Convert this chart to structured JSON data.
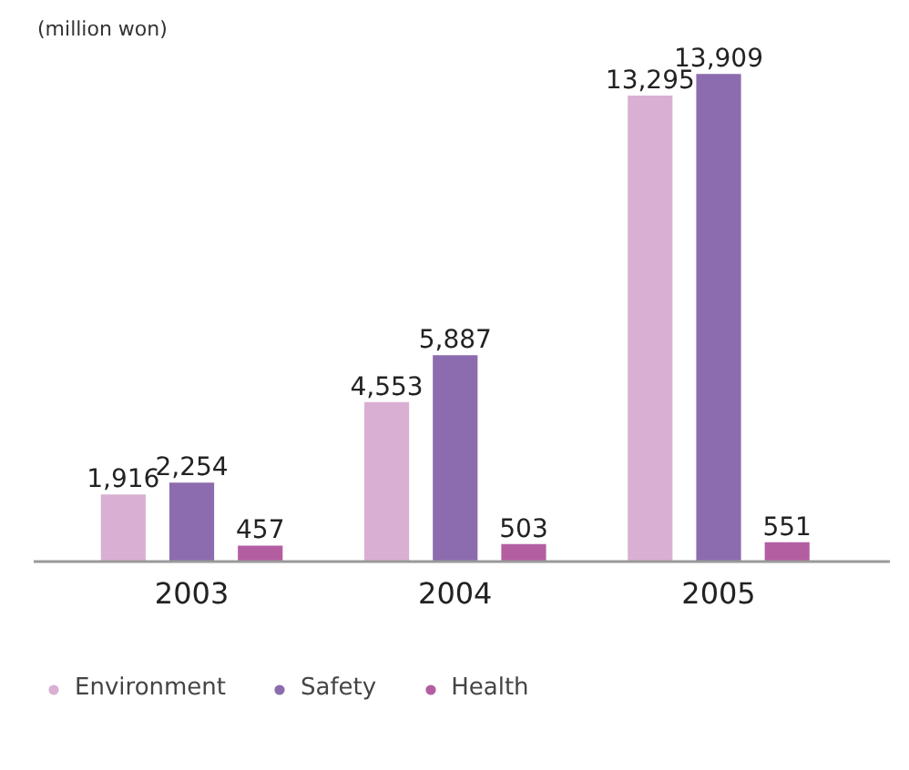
{
  "chart_data": {
    "type": "bar",
    "categories": [
      "2003",
      "2004",
      "2005"
    ],
    "series": [
      {
        "name": "Environment",
        "color": "#d9b0d3",
        "values": [
          1916,
          4553,
          13295
        ],
        "value_labels": [
          "1,916",
          "4,553",
          "13,295"
        ]
      },
      {
        "name": "Safety",
        "color": "#8c6cae",
        "values": [
          2254,
          5887,
          13909
        ],
        "value_labels": [
          "2,254",
          "5,887",
          "13,909"
        ]
      },
      {
        "name": "Health",
        "color": "#b45ea2",
        "values": [
          457,
          503,
          551
        ],
        "value_labels": [
          "457",
          "503",
          "551"
        ]
      }
    ],
    "annotations": [
      "(million won)"
    ],
    "legend": "bottom"
  }
}
